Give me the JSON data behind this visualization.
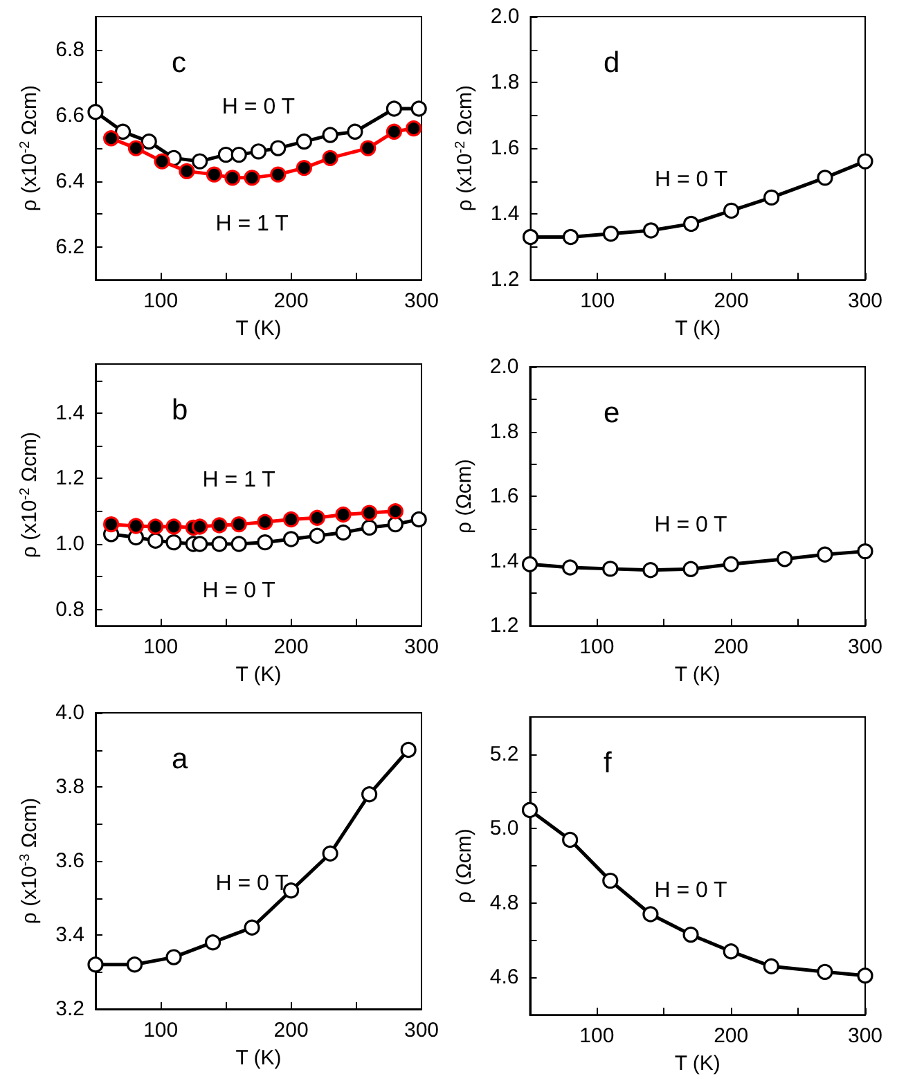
{
  "chart_data": [
    {
      "type": "line",
      "title": "c",
      "xlabel": "T (K)",
      "ylabel": "ρ (x10$^{-2}$ Ωcm)",
      "xlim": [
        50,
        300
      ],
      "xticks": [
        {
          "value": 100,
          "label": "100"
        },
        {
          "value": 150,
          "label": null
        },
        {
          "value": 200,
          "label": "200"
        },
        {
          "value": 250,
          "label": null
        },
        {
          "value": 300,
          "label": "300"
        }
      ],
      "ylim": [
        6.1,
        6.9
      ],
      "yticks": [
        6.2,
        {
          "value": 6.3,
          "label": null
        },
        6.4,
        {
          "value": 6.5,
          "label": null
        },
        6.6,
        {
          "value": 6.7,
          "label": null
        },
        6.8
      ],
      "marker": "circle",
      "line_style": "solid",
      "series": [
        {
          "name": "H = 0 T",
          "color": "#000000",
          "x": [
            50,
            71,
            91,
            110,
            130,
            150,
            160,
            175,
            190,
            210,
            230,
            249,
            279,
            298
          ],
          "values": [
            6.61,
            6.55,
            6.52,
            6.47,
            6.46,
            6.48,
            6.48,
            6.49,
            6.5,
            6.52,
            6.54,
            6.55,
            6.62,
            6.62
          ]
        },
        {
          "name": "H = 1 T",
          "color": "#ff0000",
          "x": [
            62,
            81,
            101,
            120,
            141,
            155,
            170,
            190,
            210,
            230,
            259,
            279,
            294
          ],
          "values": [
            6.53,
            6.5,
            6.46,
            6.43,
            6.42,
            6.41,
            6.41,
            6.42,
            6.44,
            6.47,
            6.5,
            6.55,
            6.56
          ]
        }
      ]
    },
    {
      "type": "line",
      "title": "d",
      "xlabel": "T (K)",
      "ylabel": "ρ (x10$^{-2}$ Ωcm)",
      "xlim": [
        50,
        300
      ],
      "xticks": [
        {
          "value": 100,
          "label": "100"
        },
        {
          "value": 150,
          "label": null
        },
        {
          "value": 200,
          "label": "200"
        },
        {
          "value": 250,
          "label": null
        },
        {
          "value": 300,
          "label": "300"
        }
      ],
      "ylim": [
        1.2,
        2.0
      ],
      "yticks": [
        1.2,
        {
          "value": 1.3,
          "label": null
        },
        1.4,
        {
          "value": 1.5,
          "label": null
        },
        1.6,
        {
          "value": 1.7,
          "label": null
        },
        1.8,
        {
          "value": 1.9,
          "label": null
        },
        {
          "value": 2.0,
          "label": "2.0"
        }
      ],
      "marker": "circle",
      "line_style": "solid",
      "series": [
        {
          "name": "H = 0 T",
          "color": "#000000",
          "x": [
            50,
            80,
            110,
            140,
            170,
            200,
            230,
            270,
            300
          ],
          "values": [
            1.33,
            1.33,
            1.34,
            1.35,
            1.37,
            1.41,
            1.45,
            1.51,
            1.56
          ]
        }
      ]
    },
    {
      "type": "line",
      "title": "b",
      "xlabel": "T (K)",
      "ylabel": "ρ (x10$^{-2}$ Ωcm)",
      "xlim": [
        50,
        300
      ],
      "xticks": [
        {
          "value": 100,
          "label": "100"
        },
        {
          "value": 150,
          "label": null
        },
        {
          "value": 200,
          "label": "200"
        },
        {
          "value": 250,
          "label": null
        },
        {
          "value": 300,
          "label": "300"
        }
      ],
      "ylim": [
        0.75,
        1.55
      ],
      "yticks": [
        0.8,
        {
          "value": 0.9,
          "label": null
        },
        {
          "value": 1.0,
          "label": "1.0"
        },
        {
          "value": 1.1,
          "label": null
        },
        1.2,
        {
          "value": 1.3,
          "label": null
        },
        1.4,
        {
          "value": 1.5,
          "label": null
        }
      ],
      "marker": "circle",
      "line_style": "solid",
      "series": [
        {
          "name": "H = 0 T",
          "color": "#000000",
          "x": [
            62,
            81,
            96,
            110,
            125,
            130,
            145,
            160,
            180,
            200,
            220,
            240,
            260,
            280,
            298
          ],
          "values": [
            1.03,
            1.02,
            1.01,
            1.005,
            1.0,
            1.0,
            1.0,
            1.0,
            1.005,
            1.015,
            1.025,
            1.035,
            1.05,
            1.06,
            1.075
          ]
        },
        {
          "name": "H = 1 T",
          "color": "#ff0000",
          "x": [
            62,
            81,
            96,
            110,
            125,
            130,
            145,
            160,
            180,
            200,
            220,
            240,
            260,
            280
          ],
          "values": [
            1.06,
            1.055,
            1.053,
            1.053,
            1.05,
            1.053,
            1.057,
            1.06,
            1.067,
            1.075,
            1.08,
            1.09,
            1.095,
            1.1
          ]
        }
      ]
    },
    {
      "type": "line",
      "title": "e",
      "xlabel": "T (K)",
      "ylabel": "ρ (Ωcm)",
      "xlim": [
        50,
        300
      ],
      "xticks": [
        {
          "value": 100,
          "label": "100"
        },
        {
          "value": 150,
          "label": null
        },
        {
          "value": 200,
          "label": "200"
        },
        {
          "value": 250,
          "label": null
        },
        {
          "value": 300,
          "label": "300"
        }
      ],
      "ylim": [
        1.2,
        2.0
      ],
      "yticks": [
        1.2,
        {
          "value": 1.3,
          "label": null
        },
        1.4,
        {
          "value": 1.5,
          "label": null
        },
        1.6,
        {
          "value": 1.7,
          "label": null
        },
        1.8,
        {
          "value": 1.9,
          "label": null
        },
        {
          "value": 2.0,
          "label": "2.0"
        }
      ],
      "marker": "circle",
      "line_style": "solid",
      "series": [
        {
          "name": "H = 0 T",
          "color": "#000000",
          "x": [
            50,
            80,
            110,
            140,
            170,
            200,
            240,
            270,
            300
          ],
          "values": [
            1.39,
            1.38,
            1.376,
            1.372,
            1.375,
            1.39,
            1.406,
            1.42,
            1.43
          ]
        }
      ]
    },
    {
      "type": "line",
      "title": "a",
      "xlabel": "T (K)",
      "ylabel": "ρ (x10$^{-3}$ Ωcm)",
      "xlim": [
        50,
        300
      ],
      "xticks": [
        {
          "value": 100,
          "label": "100"
        },
        {
          "value": 150,
          "label": null
        },
        {
          "value": 200,
          "label": "200"
        },
        {
          "value": 250,
          "label": null
        },
        {
          "value": 300,
          "label": "300"
        }
      ],
      "ylim": [
        3.2,
        4.0
      ],
      "yticks": [
        3.2,
        {
          "value": 3.3,
          "label": null
        },
        3.4,
        {
          "value": 3.5,
          "label": null
        },
        3.6,
        {
          "value": 3.7,
          "label": null
        },
        3.8,
        {
          "value": 3.9,
          "label": null
        },
        {
          "value": 4.0,
          "label": "4.0"
        }
      ],
      "marker": "circle",
      "line_style": "solid",
      "series": [
        {
          "name": "H = 0 T",
          "color": "#000000",
          "x": [
            50,
            80,
            110,
            140,
            170,
            200,
            230,
            260,
            290
          ],
          "values": [
            3.32,
            3.32,
            3.34,
            3.38,
            3.42,
            3.52,
            3.62,
            3.78,
            3.9
          ]
        }
      ]
    },
    {
      "type": "line",
      "title": "f",
      "xlabel": "T (K)",
      "ylabel": "ρ (Ωcm)",
      "xlim": [
        50,
        300
      ],
      "xticks": [
        {
          "value": 100,
          "label": "100"
        },
        {
          "value": 150,
          "label": null
        },
        {
          "value": 200,
          "label": "200"
        },
        {
          "value": 250,
          "label": null
        },
        {
          "value": 300,
          "label": "300"
        }
      ],
      "ylim": [
        4.5,
        5.3
      ],
      "yticks": [
        4.6,
        {
          "value": 4.7,
          "label": null
        },
        4.8,
        {
          "value": 4.9,
          "label": null
        },
        {
          "value": 5.0,
          "label": "5.0"
        },
        {
          "value": 5.1,
          "label": null
        },
        5.2
      ],
      "marker": "circle",
      "line_style": "solid",
      "series": [
        {
          "name": "H = 0 T",
          "color": "#000000",
          "x": [
            50,
            80,
            110,
            140,
            170,
            200,
            230,
            270,
            300
          ],
          "values": [
            5.05,
            4.97,
            4.86,
            4.77,
            4.715,
            4.67,
            4.63,
            4.615,
            4.605
          ]
        }
      ]
    }
  ]
}
